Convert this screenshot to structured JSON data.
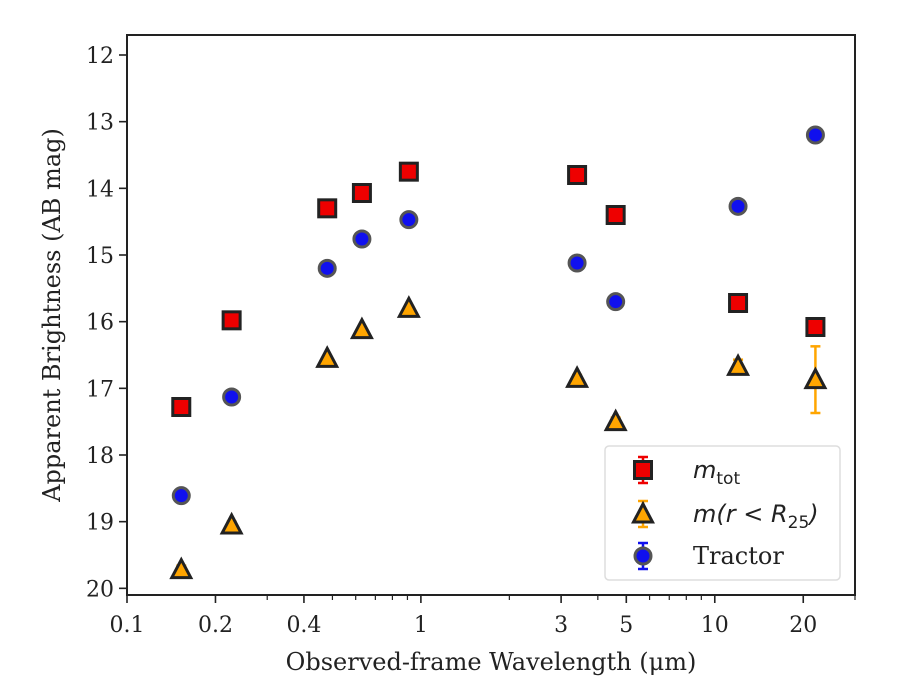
{
  "chart_data": {
    "type": "scatter",
    "xlabel": "Observed-frame Wavelength (μm)",
    "ylabel": "Apparent Brightness (AB mag)",
    "x_scale": "log",
    "xlim": [
      0.1,
      30
    ],
    "ylim": [
      20.1,
      11.7
    ],
    "y_inverted": true,
    "x_ticks": [
      0.1,
      0.2,
      0.4,
      1,
      3,
      5,
      10,
      20
    ],
    "x_tick_labels": [
      "0.1",
      "0.2",
      "0.4",
      "1",
      "3",
      "5",
      "10",
      "20"
    ],
    "y_ticks": [
      12,
      13,
      14,
      15,
      16,
      17,
      18,
      19,
      20
    ],
    "y_tick_labels": [
      "12",
      "13",
      "14",
      "15",
      "16",
      "17",
      "18",
      "19",
      "20"
    ],
    "grid": false,
    "legend_position": "bottom-right",
    "series": [
      {
        "name": "m_tot",
        "label_main": "m",
        "label_sub": "tot",
        "marker": "square",
        "color": "#ee0000",
        "x": [
          0.153,
          0.227,
          0.48,
          0.63,
          0.91,
          3.4,
          4.6,
          12.0,
          22.0
        ],
        "y": [
          17.28,
          15.98,
          14.3,
          14.07,
          13.75,
          13.8,
          14.4,
          15.72,
          16.08
        ],
        "yerr": [
          0.05,
          0.05,
          0.03,
          0.03,
          0.03,
          0.03,
          0.04,
          0.05,
          0.08
        ]
      },
      {
        "name": "m(r < R25)",
        "label_main": "m(r < R",
        "label_sub": "25",
        "label_end": ")",
        "marker": "triangle",
        "color": "#ffa500",
        "x": [
          0.153,
          0.227,
          0.48,
          0.63,
          0.91,
          3.4,
          4.6,
          12.0,
          22.0
        ],
        "y": [
          19.72,
          19.05,
          16.55,
          16.12,
          15.8,
          16.85,
          17.5,
          16.67,
          16.87
        ],
        "yerr": [
          0.06,
          0.05,
          0.03,
          0.03,
          0.03,
          0.05,
          0.06,
          0.1,
          0.5
        ]
      },
      {
        "name": "Tractor",
        "marker": "circle",
        "color": "#1010ee",
        "x": [
          0.153,
          0.227,
          0.48,
          0.63,
          0.91,
          3.4,
          4.6,
          12.0,
          22.0
        ],
        "y": [
          18.61,
          17.13,
          15.2,
          14.76,
          14.47,
          15.12,
          15.7,
          14.27,
          13.2
        ],
        "yerr": [
          0.05,
          0.05,
          0.03,
          0.03,
          0.03,
          0.04,
          0.05,
          0.05,
          0.06
        ]
      }
    ]
  }
}
